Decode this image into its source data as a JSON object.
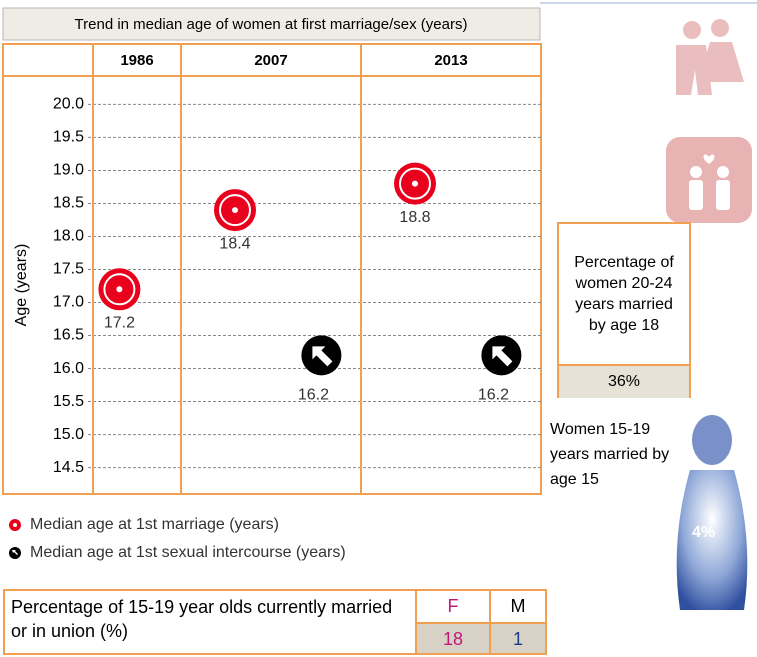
{
  "chart_data": {
    "type": "scatter",
    "title": "Trend in median age of women at first marriage/sex (years)",
    "categories": [
      "1986",
      "2007",
      "2013"
    ],
    "y_label": "Age (years)",
    "ylim": [
      14.1,
      20.4
    ],
    "yticks": [
      {
        "value": 20,
        "label": "20.0"
      },
      19.5,
      {
        "value": 19,
        "label": "19.0"
      },
      18.5,
      {
        "value": 18,
        "label": "18.0"
      },
      17.5,
      {
        "value": 17,
        "label": "17.0"
      },
      16.5,
      {
        "value": 16,
        "label": "16.0"
      },
      15.5,
      {
        "value": 15,
        "label": "15.0"
      },
      14.5
    ],
    "grid": true,
    "series": [
      {
        "name": "Median age at 1st marriage (years)",
        "color": "#e8001c",
        "values": [
          17.2,
          18.4,
          18.8
        ]
      },
      {
        "name": "Median age at 1st sexual intercourse (years)",
        "color": "#000000",
        "values": [
          null,
          16.2,
          16.2
        ]
      }
    ]
  },
  "married_by_18": {
    "label": "Percentage of women 20-24 years married by age 18",
    "value": "36%"
  },
  "married_by_15": {
    "label": "Women 15-19 years married by age 15",
    "value": "4%"
  },
  "currently_married": {
    "label": "Percentage of 15-19 year olds currently married or in union (%)",
    "headers": [
      "F",
      "M"
    ],
    "values": [
      "18",
      "1"
    ]
  }
}
